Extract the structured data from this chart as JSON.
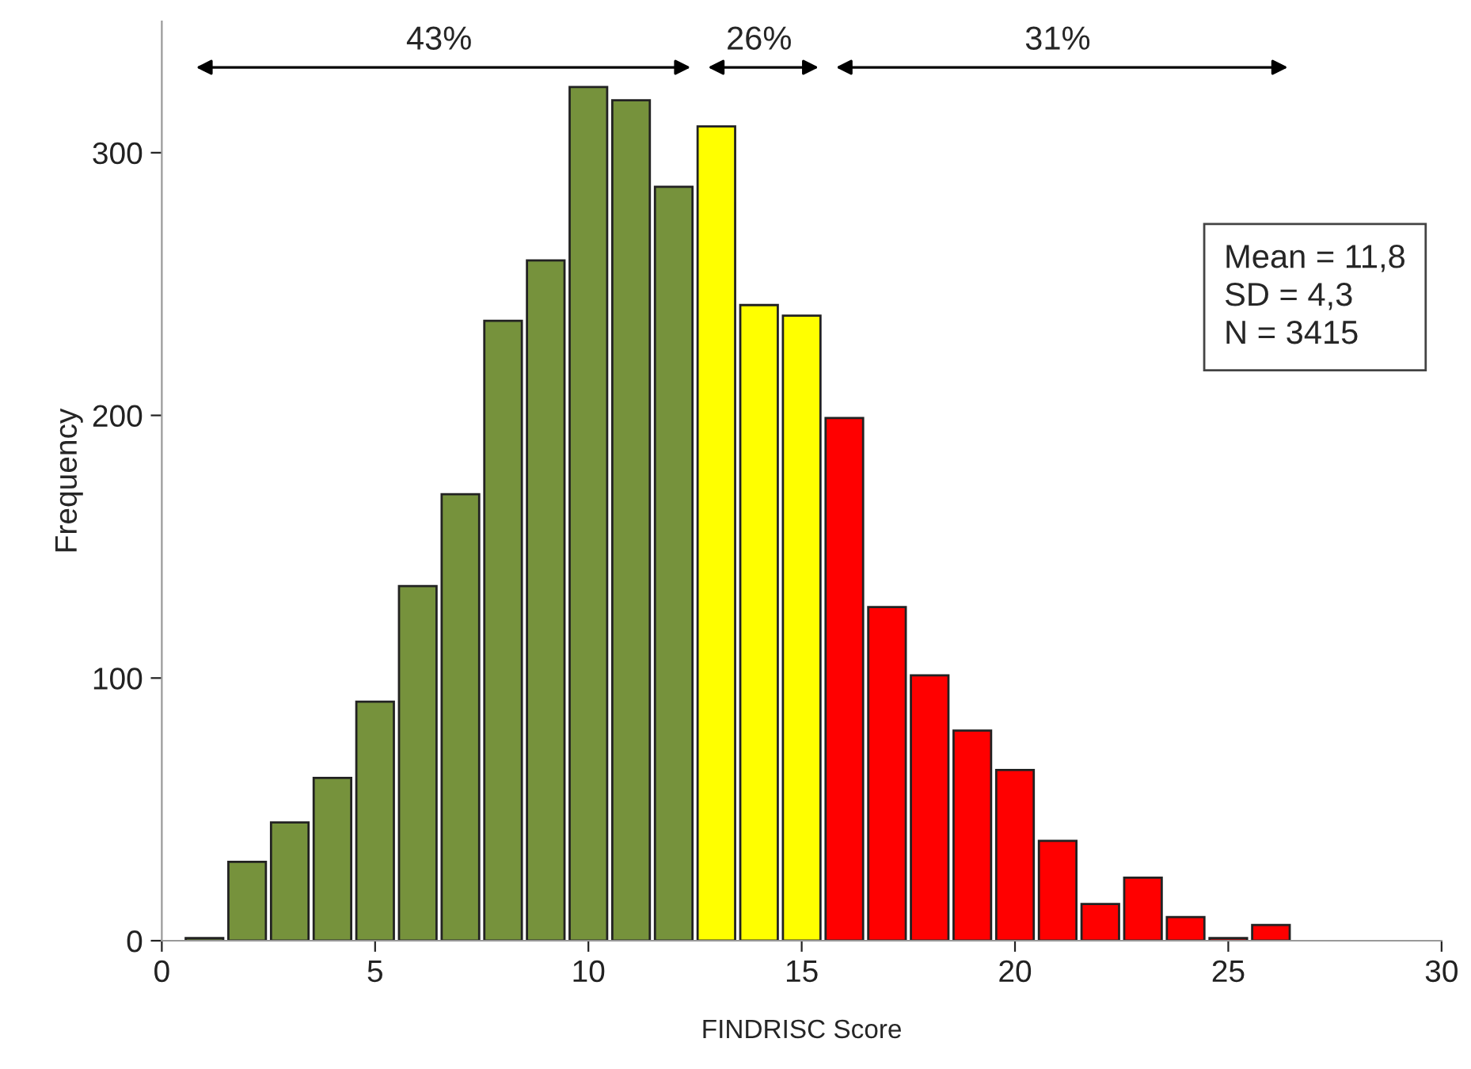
{
  "chart_data": {
    "type": "histogram",
    "xlabel": "FINDRISC Score",
    "ylabel": "Frequency",
    "bins": [
      0.5,
      1.5,
      2.5,
      3.5,
      4.5,
      5.5,
      6.5,
      7.5,
      8.5,
      9.5,
      10.5,
      11.5,
      12.5,
      13.5,
      14.5,
      15.5,
      16.5,
      17.5,
      18.5,
      19.5,
      20.5,
      21.5,
      22.5,
      23.5,
      24.5,
      25.5,
      26.5
    ],
    "values": [
      1,
      30,
      45,
      62,
      91,
      135,
      170,
      236,
      259,
      325,
      320,
      287,
      310,
      242,
      238,
      199,
      127,
      101,
      80,
      65,
      38,
      14,
      24,
      9,
      1,
      6
    ],
    "colors": [
      "#76923c",
      "#76923c",
      "#76923c",
      "#76923c",
      "#76923c",
      "#76923c",
      "#76923c",
      "#76923c",
      "#76923c",
      "#76923c",
      "#76923c",
      "#76923c",
      "#ffff00",
      "#ffff00",
      "#ffff00",
      "#ff0000",
      "#ff0000",
      "#ff0000",
      "#ff0000",
      "#ff0000",
      "#ff0000",
      "#ff0000",
      "#ff0000",
      "#ff0000",
      "#ff0000",
      "#ff0000"
    ],
    "xlim": [
      0,
      30
    ],
    "xticks": [
      0,
      5,
      10,
      15,
      20,
      25,
      30
    ],
    "ylim": [
      0,
      350
    ],
    "yticks": [
      0,
      100,
      200,
      300
    ],
    "grid": false,
    "legend": false,
    "annotations": [
      "43%",
      "26%",
      "31%",
      "Mean = 11,8",
      "SD = 4,3",
      "N = 3415"
    ]
  }
}
